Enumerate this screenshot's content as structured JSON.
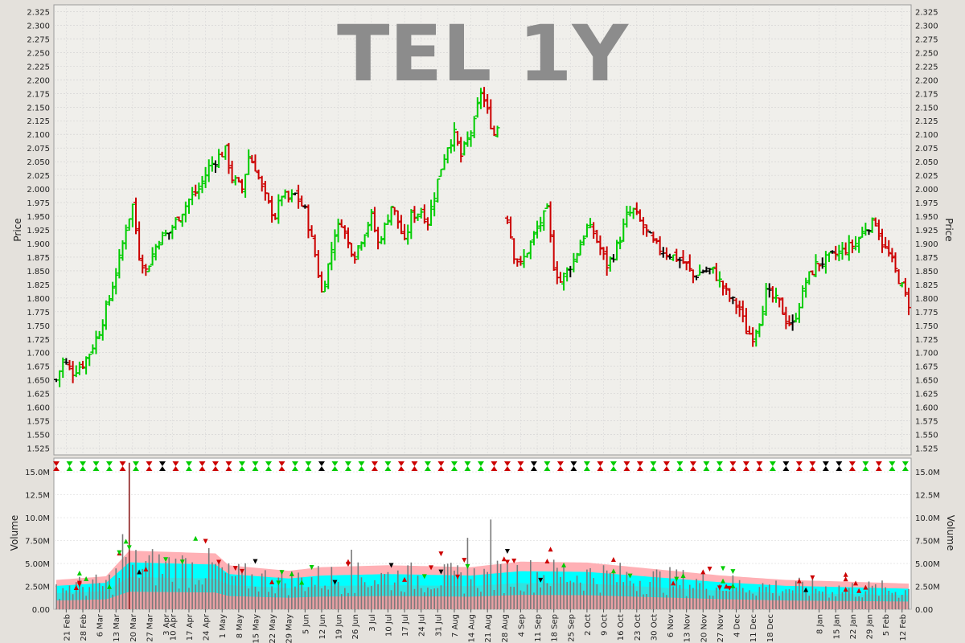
{
  "chart_data": [
    {
      "type": "ohlc",
      "title": "TEL 1Y",
      "ylabel": "Price",
      "ylim": [
        1.5125,
        2.3375
      ],
      "y_ticks": [
        "1.525",
        "1.550",
        "1.575",
        "1.600",
        "1.625",
        "1.650",
        "1.675",
        "1.700",
        "1.725",
        "1.750",
        "1.775",
        "1.800",
        "1.825",
        "1.850",
        "1.875",
        "1.900",
        "1.925",
        "1.950",
        "1.975",
        "2.000",
        "2.025",
        "2.050",
        "2.075",
        "2.100",
        "2.125",
        "2.150",
        "2.175",
        "2.200",
        "2.225",
        "2.250",
        "2.275",
        "2.300",
        "2.325"
      ],
      "grid": true,
      "x_ticks": [
        "21 Feb",
        "28 Feb",
        "6 Mar",
        "13 Mar",
        "20 Mar",
        "27 Mar",
        "3 Apr",
        "10 Apr",
        "17 Apr",
        "24 Apr",
        "1 May",
        "8 May",
        "15 May",
        "22 May",
        "29 May",
        "5 Jun",
        "12 Jun",
        "19 Jun",
        "26 Jun",
        "3 Jul",
        "10 Jul",
        "17 Jul",
        "24 Jul",
        "31 Jul",
        "7 Aug",
        "14 Aug",
        "21 Aug",
        "28 Aug",
        "4 Sep",
        "11 Sep",
        "18 Sep",
        "25 Sep",
        "2 Oct",
        "9 Oct",
        "16 Oct",
        "23 Oct",
        "30 Oct",
        "6 Nov",
        "13 Nov",
        "20 Nov",
        "27 Nov",
        "4 Dec",
        "11 Dec",
        "18 Dec",
        "8 Jan",
        "15 Jan",
        "22 Jan",
        "29 Jan",
        "5 Feb",
        "12 Feb"
      ],
      "x_tick_index": [
        3,
        8,
        13,
        18,
        23,
        28,
        33,
        35,
        40,
        45,
        50,
        55,
        60,
        65,
        70,
        75,
        80,
        85,
        90,
        95,
        100,
        105,
        110,
        115,
        120,
        125,
        130,
        135,
        140,
        145,
        150,
        155,
        160,
        165,
        170,
        175,
        180,
        185,
        190,
        195,
        200,
        205,
        210,
        215,
        230,
        235,
        240,
        245,
        250,
        255
      ],
      "close_path": [
        [
          0,
          1.65
        ],
        [
          2,
          1.685
        ],
        [
          5,
          1.665
        ],
        [
          8,
          1.68
        ],
        [
          10,
          1.7
        ],
        [
          13,
          1.74
        ],
        [
          16,
          1.8
        ],
        [
          19,
          1.87
        ],
        [
          21,
          1.93
        ],
        [
          23,
          1.97
        ],
        [
          25,
          1.88
        ],
        [
          27,
          1.85
        ],
        [
          29,
          1.88
        ],
        [
          31,
          1.91
        ],
        [
          34,
          1.92
        ],
        [
          37,
          1.95
        ],
        [
          40,
          1.98
        ],
        [
          43,
          2.0
        ],
        [
          46,
          2.04
        ],
        [
          49,
          2.06
        ],
        [
          51,
          2.07
        ],
        [
          53,
          2.02
        ],
        [
          56,
          2.0
        ],
        [
          58,
          2.06
        ],
        [
          60,
          2.04
        ],
        [
          62,
          2.0
        ],
        [
          64,
          1.97
        ],
        [
          66,
          1.95
        ],
        [
          68,
          1.99
        ],
        [
          70,
          1.98
        ],
        [
          72,
          1.99
        ],
        [
          75,
          1.96
        ],
        [
          78,
          1.88
        ],
        [
          80,
          1.81
        ],
        [
          82,
          1.86
        ],
        [
          84,
          1.92
        ],
        [
          86,
          1.94
        ],
        [
          88,
          1.9
        ],
        [
          90,
          1.88
        ],
        [
          92,
          1.91
        ],
        [
          95,
          1.95
        ],
        [
          97,
          1.9
        ],
        [
          99,
          1.93
        ],
        [
          101,
          1.97
        ],
        [
          103,
          1.94
        ],
        [
          105,
          1.9
        ],
        [
          107,
          1.95
        ],
        [
          110,
          1.96
        ],
        [
          112,
          1.94
        ],
        [
          114,
          1.99
        ],
        [
          116,
          2.04
        ],
        [
          118,
          2.08
        ],
        [
          120,
          2.1
        ],
        [
          122,
          2.06
        ],
        [
          124,
          2.09
        ],
        [
          126,
          2.12
        ],
        [
          128,
          2.18
        ],
        [
          130,
          2.14
        ],
        [
          132,
          2.1
        ],
        [
          134,
          2.13
        ],
        [
          136,
          1.95
        ],
        [
          138,
          1.88
        ],
        [
          140,
          1.86
        ],
        [
          143,
          1.9
        ],
        [
          146,
          1.94
        ],
        [
          148,
          1.96
        ],
        [
          150,
          1.86
        ],
        [
          152,
          1.83
        ],
        [
          154,
          1.85
        ],
        [
          156,
          1.87
        ],
        [
          158,
          1.9
        ],
        [
          160,
          1.93
        ],
        [
          162,
          1.92
        ],
        [
          164,
          1.89
        ],
        [
          166,
          1.86
        ],
        [
          168,
          1.88
        ],
        [
          170,
          1.91
        ],
        [
          172,
          1.95
        ],
        [
          174,
          1.96
        ],
        [
          176,
          1.94
        ],
        [
          178,
          1.92
        ],
        [
          180,
          1.9
        ],
        [
          182,
          1.89
        ],
        [
          185,
          1.88
        ],
        [
          188,
          1.87
        ],
        [
          190,
          1.86
        ],
        [
          192,
          1.84
        ],
        [
          195,
          1.85
        ],
        [
          198,
          1.85
        ],
        [
          200,
          1.83
        ],
        [
          203,
          1.8
        ],
        [
          206,
          1.78
        ],
        [
          208,
          1.74
        ],
        [
          210,
          1.73
        ],
        [
          212,
          1.76
        ],
        [
          214,
          1.81
        ],
        [
          216,
          1.8
        ],
        [
          218,
          1.79
        ],
        [
          220,
          1.76
        ],
        [
          222,
          1.75
        ],
        [
          224,
          1.79
        ],
        [
          226,
          1.83
        ],
        [
          229,
          1.86
        ],
        [
          232,
          1.87
        ],
        [
          235,
          1.88
        ],
        [
          238,
          1.89
        ],
        [
          241,
          1.9
        ],
        [
          244,
          1.93
        ],
        [
          247,
          1.94
        ],
        [
          249,
          1.9
        ],
        [
          251,
          1.88
        ],
        [
          253,
          1.85
        ],
        [
          255,
          1.82
        ],
        [
          257,
          1.79
        ]
      ],
      "gap_index": [
        134,
        135
      ]
    },
    {
      "type": "bar",
      "ylabel": "Volume",
      "ylim": [
        0,
        16500000
      ],
      "y_ticks": [
        {
          "v": 0,
          "t": "0.00"
        },
        {
          "v": 2500000,
          "t": "2.50M"
        },
        {
          "v": 5000000,
          "t": "5.00M"
        },
        {
          "v": 7500000,
          "t": "7.50M"
        },
        {
          "v": 10000000,
          "t": "10.0M"
        },
        {
          "v": 12500000,
          "t": "12.5M"
        },
        {
          "v": 15000000,
          "t": "15.0M"
        }
      ],
      "avg_path": [
        [
          0,
          3200000
        ],
        [
          15,
          3600000
        ],
        [
          22,
          6400000
        ],
        [
          48,
          6100000
        ],
        [
          52,
          4800000
        ],
        [
          70,
          4200000
        ],
        [
          80,
          4600000
        ],
        [
          100,
          4800000
        ],
        [
          125,
          4600000
        ],
        [
          140,
          5200000
        ],
        [
          160,
          5100000
        ],
        [
          180,
          4400000
        ],
        [
          200,
          3700000
        ],
        [
          220,
          3200000
        ],
        [
          240,
          3000000
        ],
        [
          257,
          2800000
        ]
      ],
      "spikes": [
        {
          "i": 22,
          "v": 16000000
        },
        {
          "i": 20,
          "v": 8200000
        },
        {
          "i": 124,
          "v": 7800000
        },
        {
          "i": 131,
          "v": 9800000
        },
        {
          "i": 89,
          "v": 6500000
        }
      ],
      "colors": {
        "up": "#00cc00",
        "down": "#cc0000",
        "flat": "#000000",
        "band_outer": "#ffb0b5",
        "band_mid": "#00ffff",
        "band_inner": "#2fe3e0",
        "bar": "#7a7a7a"
      }
    }
  ]
}
